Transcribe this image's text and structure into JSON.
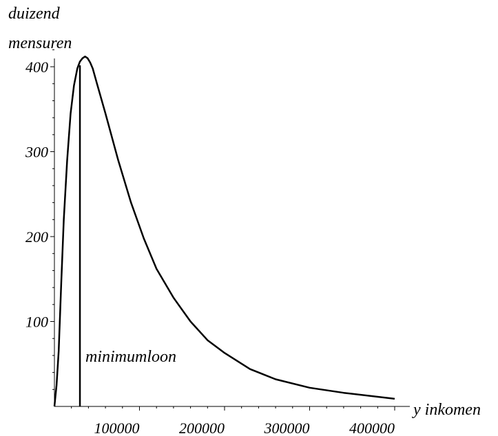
{
  "chart_data": {
    "type": "line",
    "ylabel_line1": "duizend",
    "ylabel_line2": "mensuren",
    "xlabel": "y inkomen",
    "annotation": "minimumloon",
    "xlim": [
      0,
      400000
    ],
    "ylim": [
      0,
      430
    ],
    "x_ticks": [
      100000,
      200000,
      300000,
      400000
    ],
    "x_tick_labels": [
      "100000",
      "200000",
      "300000",
      "400000"
    ],
    "y_ticks": [
      100,
      200,
      300,
      400
    ],
    "y_tick_labels": [
      "100",
      "200",
      "300",
      "400"
    ],
    "vertical_line_x": 30000,
    "grid": false,
    "series": [
      {
        "x": [
          0,
          2500,
          5000,
          8000,
          11000,
          15000,
          19000,
          23000,
          27000,
          30000,
          33000,
          36000,
          39000,
          42000,
          45000,
          50000,
          60000,
          75000,
          90000,
          105000,
          120000,
          140000,
          160000,
          180000,
          200000,
          230000,
          260000,
          300000,
          340000,
          400000
        ],
        "y": [
          0,
          25,
          65,
          145,
          220,
          290,
          345,
          378,
          398,
          406,
          410,
          412,
          410,
          405,
          398,
          380,
          345,
          290,
          240,
          198,
          162,
          128,
          100,
          78,
          63,
          44,
          32,
          22,
          16,
          9
        ]
      }
    ]
  }
}
